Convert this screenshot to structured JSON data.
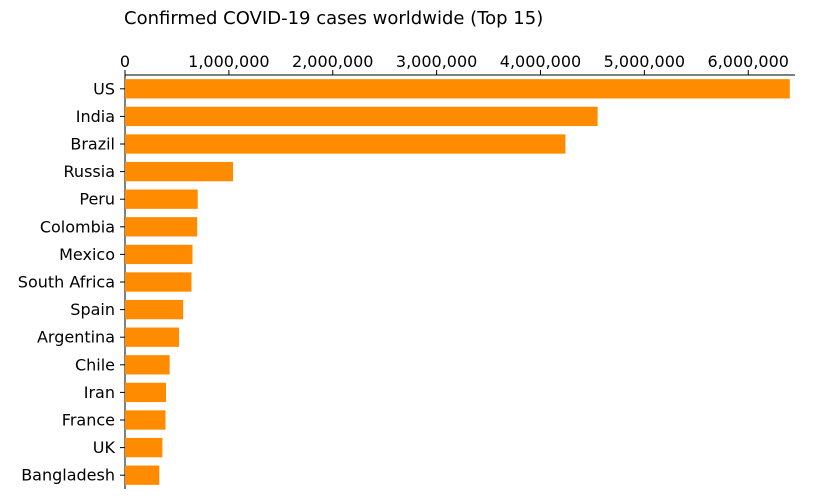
{
  "chart_data": {
    "type": "bar",
    "orientation": "horizontal",
    "title": "Confirmed COVID-19 cases worldwide (Top 15)",
    "xlabel": "",
    "ylabel": "",
    "categories": [
      "US",
      "India",
      "Brazil",
      "Russia",
      "Peru",
      "Colombia",
      "Mexico",
      "South Africa",
      "Spain",
      "Argentina",
      "Chile",
      "Iran",
      "France",
      "UK",
      "Bangladesh"
    ],
    "values": [
      6400000,
      4550000,
      4240000,
      1040000,
      700000,
      695000,
      650000,
      640000,
      560000,
      520000,
      430000,
      395000,
      390000,
      360000,
      330000
    ],
    "xlim": [
      0,
      6450000
    ],
    "xticks": [
      0,
      1000000,
      2000000,
      3000000,
      4000000,
      5000000,
      6000000
    ],
    "xtick_labels": [
      "0",
      "1,000,000",
      "2,000,000",
      "3,000,000",
      "4,000,000",
      "5,000,000",
      "6,000,000"
    ],
    "x_axis_position": "top",
    "grid": false,
    "bar_color": "#ff8c00"
  }
}
